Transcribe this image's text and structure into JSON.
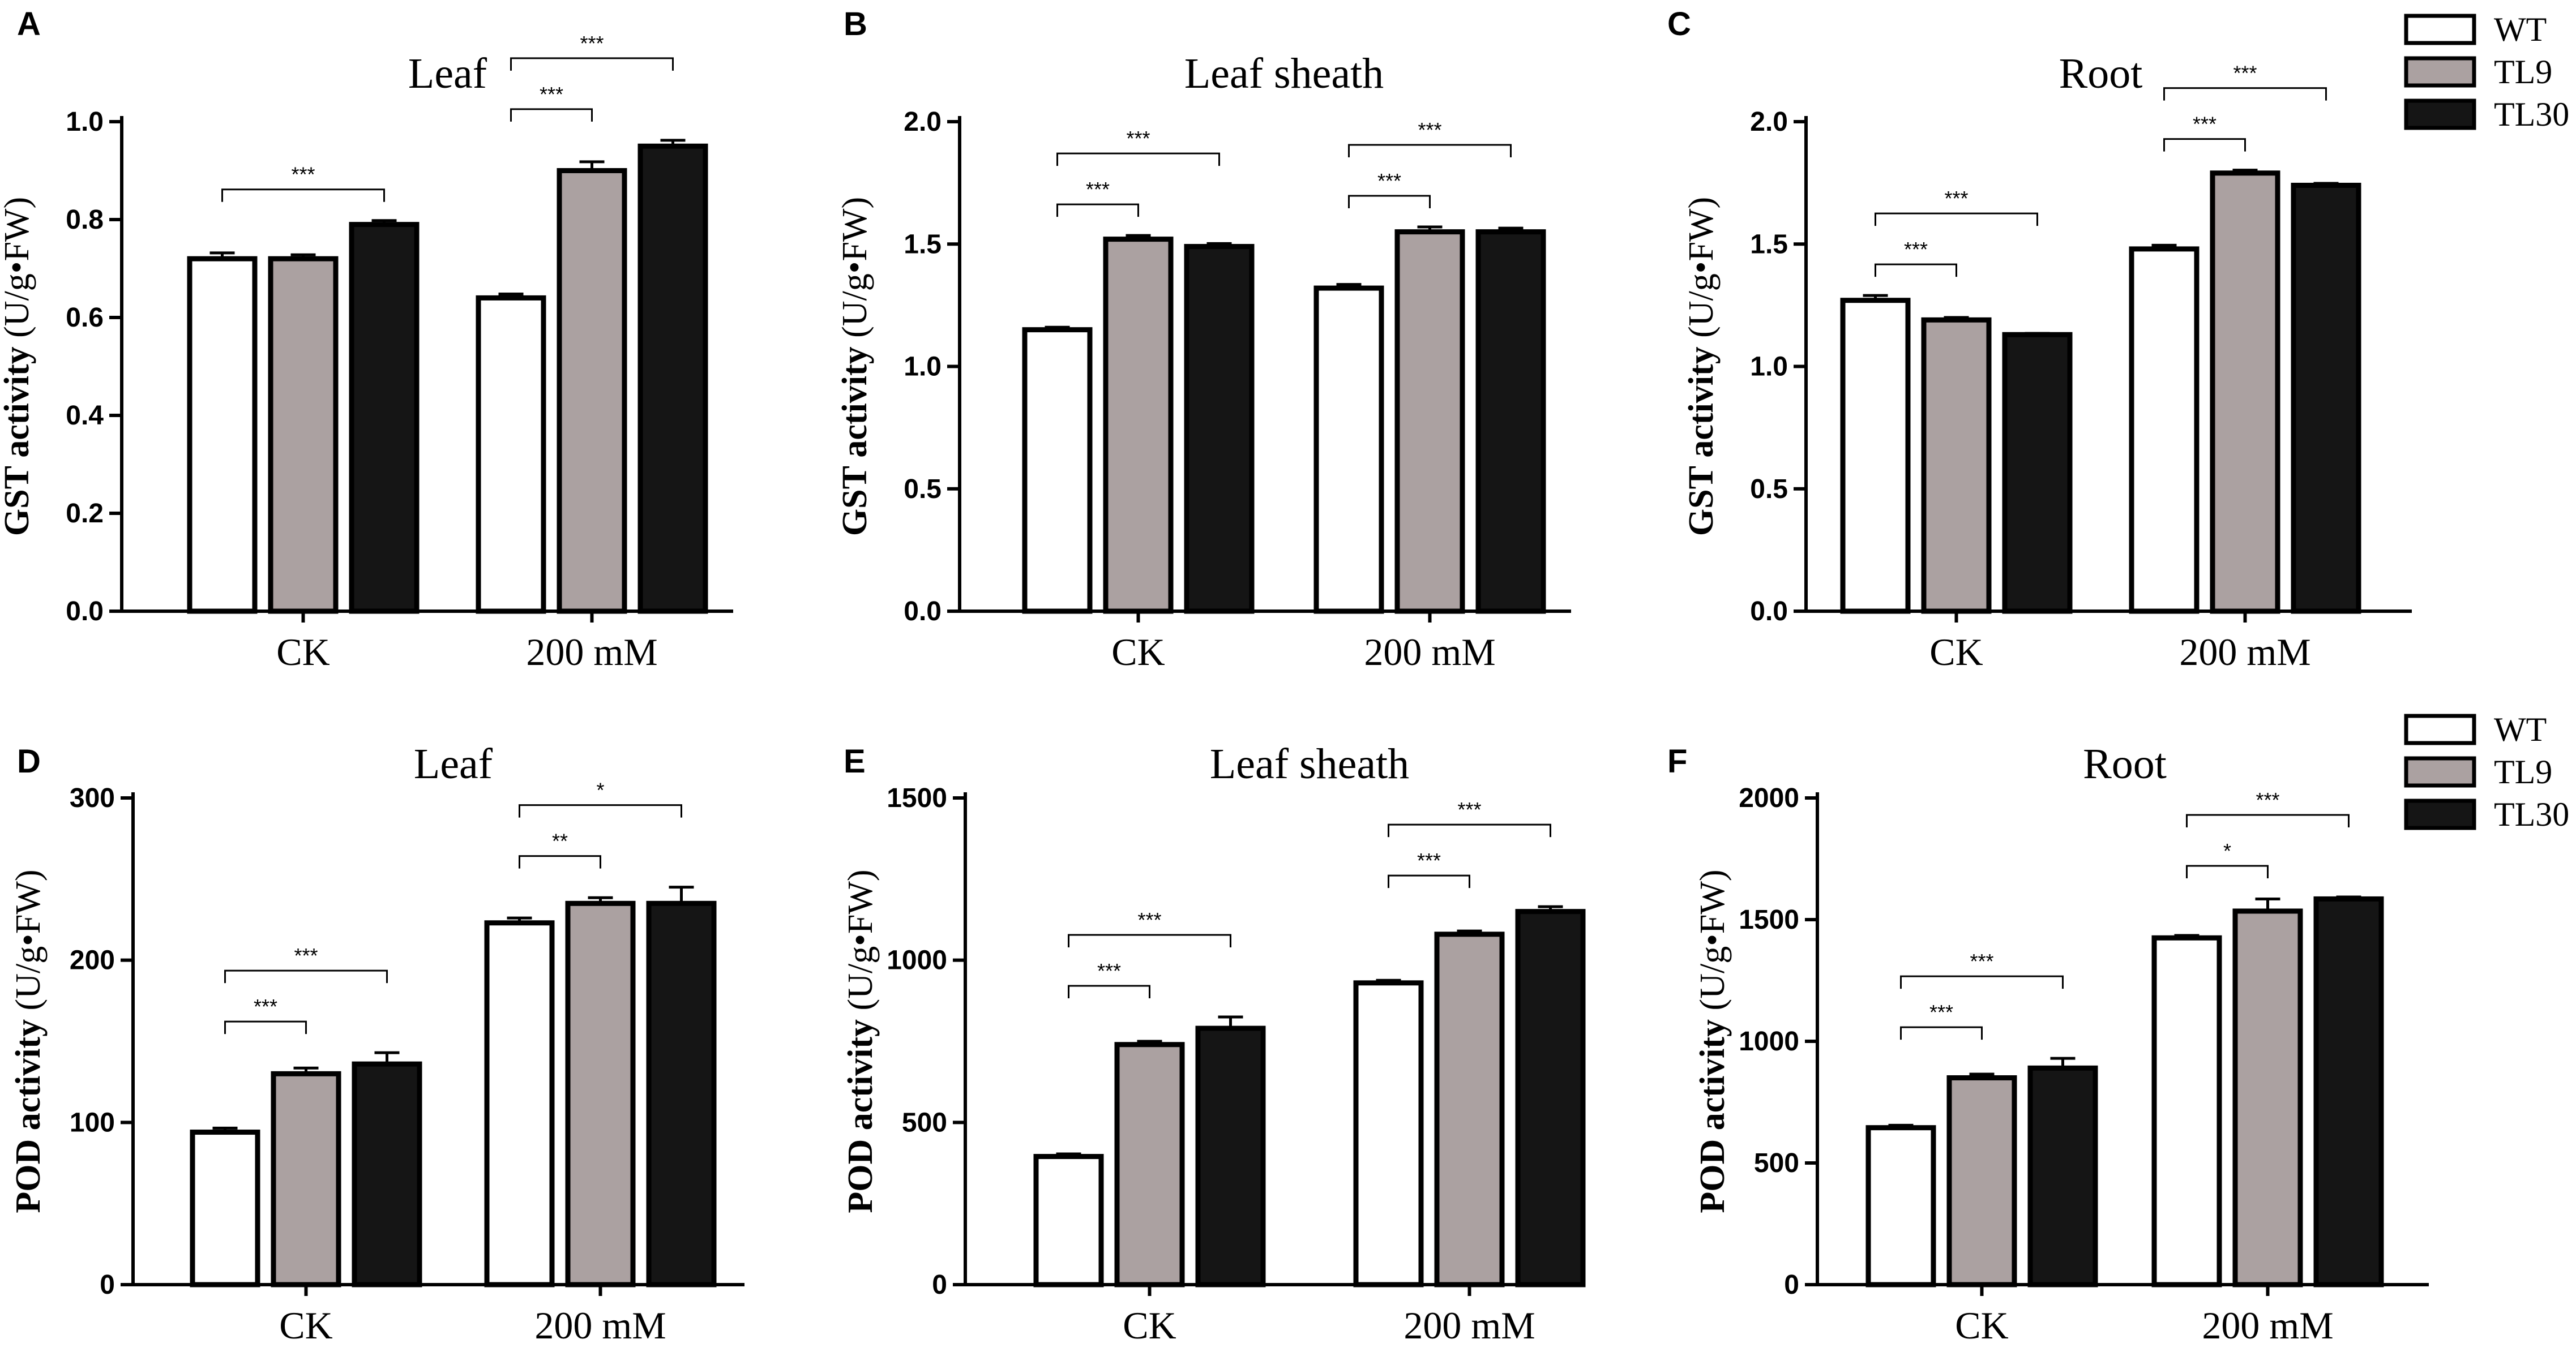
{
  "figure": {
    "legend": [
      {
        "label": "WT",
        "color": "#ffffff"
      },
      {
        "label": "TL9",
        "color": "#aba1a1"
      },
      {
        "label": "TL30",
        "color": "#151515"
      }
    ]
  },
  "chart_data": [
    {
      "panel": "A",
      "type": "bar",
      "title": "Leaf",
      "ylabel_bold": "GST activity",
      "ylabel_unit": " (U/g•FW)",
      "categories": [
        "CK",
        "200 mM"
      ],
      "yticks": [
        "0.0",
        "0.2",
        "0.4",
        "0.6",
        "0.8",
        "1.0"
      ],
      "ylim": [
        0,
        1.0
      ],
      "series": [
        {
          "name": "WT",
          "values": [
            0.72,
            0.64
          ],
          "errors": [
            0.012,
            0.008
          ]
        },
        {
          "name": "TL9",
          "values": [
            0.72,
            0.9
          ],
          "errors": [
            0.008,
            0.018
          ]
        },
        {
          "name": "TL30",
          "values": [
            0.79,
            0.95
          ],
          "errors": [
            0.008,
            0.012
          ]
        }
      ],
      "annotations": [
        {
          "group": 0,
          "from": 0,
          "to": 2,
          "label": "***"
        },
        {
          "group": 1,
          "from": 0,
          "to": 1,
          "label": "***"
        },
        {
          "group": 1,
          "from": 0,
          "to": 2,
          "label": "***"
        }
      ]
    },
    {
      "panel": "B",
      "type": "bar",
      "title": "Leaf sheath",
      "ylabel_bold": "GST activity",
      "ylabel_unit": " (U/g•FW)",
      "categories": [
        "CK",
        "200 mM"
      ],
      "yticks": [
        "0.0",
        "0.5",
        "1.0",
        "1.5",
        "2.0"
      ],
      "ylim": [
        0,
        2.0
      ],
      "series": [
        {
          "name": "WT",
          "values": [
            1.15,
            1.32
          ],
          "errors": [
            0.01,
            0.015
          ]
        },
        {
          "name": "TL9",
          "values": [
            1.52,
            1.55
          ],
          "errors": [
            0.015,
            0.02
          ]
        },
        {
          "name": "TL30",
          "values": [
            1.49,
            1.55
          ],
          "errors": [
            0.012,
            0.015
          ]
        }
      ],
      "annotations": [
        {
          "group": 0,
          "from": 0,
          "to": 1,
          "label": "***"
        },
        {
          "group": 0,
          "from": 0,
          "to": 2,
          "label": "***"
        },
        {
          "group": 1,
          "from": 0,
          "to": 1,
          "label": "***"
        },
        {
          "group": 1,
          "from": 0,
          "to": 2,
          "label": "***"
        }
      ]
    },
    {
      "panel": "C",
      "type": "bar",
      "title": "Root",
      "ylabel_bold": "GST activity",
      "ylabel_unit": " (U/g•FW)",
      "categories": [
        "CK",
        "200 mM"
      ],
      "yticks": [
        "0.0",
        "0.5",
        "1.0",
        "1.5",
        "2.0"
      ],
      "ylim": [
        0,
        2.0
      ],
      "series": [
        {
          "name": "WT",
          "values": [
            1.27,
            1.48
          ],
          "errors": [
            0.02,
            0.015
          ]
        },
        {
          "name": "TL9",
          "values": [
            1.19,
            1.79
          ],
          "errors": [
            0.01,
            0.012
          ]
        },
        {
          "name": "TL30",
          "values": [
            1.13,
            1.74
          ],
          "errors": [
            0.005,
            0.008
          ]
        }
      ],
      "annotations": [
        {
          "group": 0,
          "from": 0,
          "to": 1,
          "label": "***"
        },
        {
          "group": 0,
          "from": 0,
          "to": 2,
          "label": "***"
        },
        {
          "group": 1,
          "from": 0,
          "to": 1,
          "label": "***"
        },
        {
          "group": 1,
          "from": 0,
          "to": 2,
          "label": "***"
        }
      ]
    },
    {
      "panel": "D",
      "type": "bar",
      "title": "Leaf",
      "ylabel_bold": "POD activity",
      "ylabel_unit": " (U/g•FW)",
      "categories": [
        "CK",
        "200 mM"
      ],
      "yticks": [
        "0",
        "100",
        "200",
        "300"
      ],
      "ylim": [
        0,
        300
      ],
      "series": [
        {
          "name": "WT",
          "values": [
            94,
            223
          ],
          "errors": [
            2.5,
            3
          ]
        },
        {
          "name": "TL9",
          "values": [
            130,
            235
          ],
          "errors": [
            3.5,
            3.5
          ]
        },
        {
          "name": "TL30",
          "values": [
            136,
            235
          ],
          "errors": [
            7,
            10
          ]
        }
      ],
      "annotations": [
        {
          "group": 0,
          "from": 0,
          "to": 1,
          "label": "***"
        },
        {
          "group": 0,
          "from": 0,
          "to": 2,
          "label": "***"
        },
        {
          "group": 1,
          "from": 0,
          "to": 1,
          "label": "**"
        },
        {
          "group": 1,
          "from": 0,
          "to": 2,
          "label": "*"
        }
      ]
    },
    {
      "panel": "E",
      "type": "bar",
      "title": "Leaf sheath",
      "ylabel_bold": "POD activity",
      "ylabel_unit": " (U/g•FW)",
      "categories": [
        "CK",
        "200 mM"
      ],
      "yticks": [
        "0",
        "500",
        "1000",
        "1500"
      ],
      "ylim": [
        0,
        1500
      ],
      "series": [
        {
          "name": "WT",
          "values": [
            395,
            930
          ],
          "errors": [
            8,
            8
          ]
        },
        {
          "name": "TL9",
          "values": [
            740,
            1080
          ],
          "errors": [
            10,
            10
          ]
        },
        {
          "name": "TL30",
          "values": [
            790,
            1150
          ],
          "errors": [
            35,
            15
          ]
        }
      ],
      "annotations": [
        {
          "group": 0,
          "from": 0,
          "to": 1,
          "label": "***"
        },
        {
          "group": 0,
          "from": 0,
          "to": 2,
          "label": "***"
        },
        {
          "group": 1,
          "from": 0,
          "to": 1,
          "label": "***"
        },
        {
          "group": 1,
          "from": 0,
          "to": 2,
          "label": "***"
        }
      ]
    },
    {
      "panel": "F",
      "type": "bar",
      "title": "Root",
      "ylabel_bold": "POD activity",
      "ylabel_unit": " (U/g•FW)",
      "categories": [
        "CK",
        "200 mM"
      ],
      "yticks": [
        "0",
        "500",
        "1000",
        "1500",
        "2000"
      ],
      "ylim": [
        0,
        2000
      ],
      "series": [
        {
          "name": "WT",
          "values": [
            645,
            1425
          ],
          "errors": [
            10,
            10
          ]
        },
        {
          "name": "TL9",
          "values": [
            850,
            1535
          ],
          "errors": [
            15,
            50
          ]
        },
        {
          "name": "TL30",
          "values": [
            890,
            1585
          ],
          "errors": [
            40,
            8
          ]
        }
      ],
      "annotations": [
        {
          "group": 0,
          "from": 0,
          "to": 1,
          "label": "***"
        },
        {
          "group": 0,
          "from": 0,
          "to": 2,
          "label": "***"
        },
        {
          "group": 1,
          "from": 0,
          "to": 1,
          "label": "*"
        },
        {
          "group": 1,
          "from": 0,
          "to": 2,
          "label": "***"
        }
      ]
    }
  ]
}
